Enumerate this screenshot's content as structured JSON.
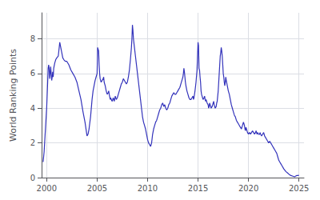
{
  "chart_data": {
    "type": "line",
    "ylabel": "World Ranking Points",
    "color": "#3333bb",
    "grid": true,
    "xlim": [
      1999.5,
      2025.5
    ],
    "xticks": [
      2000,
      2005,
      2010,
      2015,
      2020,
      2025
    ],
    "ylim": [
      0,
      9.5
    ],
    "yticks": [
      0,
      2,
      4,
      6,
      8
    ],
    "x": [
      1999.65,
      1999.75,
      1999.85,
      2000.0,
      2000.1,
      2000.15,
      2000.2,
      2000.25,
      2000.3,
      2000.35,
      2000.4,
      2000.45,
      2000.5,
      2000.55,
      2000.6,
      2000.65,
      2000.7,
      2000.8,
      2000.9,
      2001.0,
      2001.15,
      2001.3,
      2001.4,
      2001.5,
      2001.6,
      2001.7,
      2001.85,
      2002.0,
      2002.2,
      2002.4,
      2002.6,
      2002.8,
      2003.0,
      2003.2,
      2003.4,
      2003.6,
      2003.8,
      2004.0,
      2004.1,
      2004.2,
      2004.35,
      2004.5,
      2004.6,
      2004.7,
      2004.8,
      2004.9,
      2005.0,
      2005.05,
      2005.1,
      2005.15,
      2005.2,
      2005.25,
      2005.3,
      2005.4,
      2005.5,
      2005.6,
      2005.65,
      2005.7,
      2005.8,
      2005.9,
      2006.0,
      2006.1,
      2006.15,
      2006.2,
      2006.3,
      2006.35,
      2006.4,
      2006.5,
      2006.6,
      2006.7,
      2006.8,
      2006.9,
      2007.0,
      2007.1,
      2007.2,
      2007.3,
      2007.4,
      2007.5,
      2007.6,
      2007.7,
      2007.8,
      2007.9,
      2008.0,
      2008.1,
      2008.2,
      2008.3,
      2008.4,
      2008.45,
      2008.5,
      2008.55,
      2008.6,
      2008.7,
      2008.8,
      2008.9,
      2009.0,
      2009.1,
      2009.2,
      2009.3,
      2009.4,
      2009.5,
      2009.6,
      2009.7,
      2009.8,
      2009.9,
      2010.0,
      2010.1,
      2010.2,
      2010.3,
      2010.4,
      2010.5,
      2010.6,
      2010.7,
      2010.8,
      2010.9,
      2011.0,
      2011.1,
      2011.2,
      2011.3,
      2011.35,
      2011.4,
      2011.5,
      2011.6,
      2011.7,
      2011.8,
      2011.9,
      2012.0,
      2012.1,
      2012.2,
      2012.3,
      2012.4,
      2012.5,
      2012.6,
      2012.7,
      2012.8,
      2012.9,
      2013.0,
      2013.1,
      2013.2,
      2013.3,
      2013.4,
      2013.5,
      2013.55,
      2013.6,
      2013.65,
      2013.7,
      2013.75,
      2013.8,
      2013.9,
      2014.0,
      2014.1,
      2014.2,
      2014.3,
      2014.4,
      2014.5,
      2014.55,
      2014.6,
      2014.7,
      2014.8,
      2014.9,
      2015.0,
      2015.05,
      2015.1,
      2015.15,
      2015.2,
      2015.25,
      2015.3,
      2015.35,
      2015.4,
      2015.45,
      2015.5,
      2015.6,
      2015.65,
      2015.7,
      2015.75,
      2015.8,
      2015.85,
      2015.9,
      2016.0,
      2016.05,
      2016.1,
      2016.15,
      2016.2,
      2016.3,
      2016.4,
      2016.5,
      2016.55,
      2016.6,
      2016.7,
      2016.8,
      2016.85,
      2016.9,
      2017.0,
      2017.05,
      2017.1,
      2017.15,
      2017.2,
      2017.25,
      2017.3,
      2017.35,
      2017.4,
      2017.45,
      2017.5,
      2017.55,
      2017.6,
      2017.65,
      2017.7,
      2017.75,
      2017.8,
      2017.9,
      2018.0,
      2018.1,
      2018.2,
      2018.3,
      2018.4,
      2018.5,
      2018.6,
      2018.7,
      2018.8,
      2018.9,
      2019.0,
      2019.1,
      2019.2,
      2019.3,
      2019.4,
      2019.5,
      2019.55,
      2019.6,
      2019.65,
      2019.7,
      2019.75,
      2019.8,
      2019.85,
      2019.9,
      2020.0,
      2020.1,
      2020.2,
      2020.3,
      2020.4,
      2020.5,
      2020.6,
      2020.7,
      2020.75,
      2020.8,
      2020.85,
      2020.9,
      2021.0,
      2021.1,
      2021.15,
      2021.2,
      2021.3,
      2021.4,
      2021.5,
      2021.55,
      2021.6,
      2021.7,
      2021.8,
      2021.9,
      2022.0,
      2022.1,
      2022.2,
      2022.3,
      2022.4,
      2022.5,
      2022.6,
      2022.7,
      2022.8,
      2022.85,
      2022.9,
      2023.0,
      2023.1,
      2023.2,
      2023.3,
      2023.5,
      2023.7,
      2023.9,
      2024.0,
      2024.2,
      2024.4,
      2024.5,
      2024.6,
      2024.7,
      2024.8,
      2024.85,
      2024.9,
      2025.0
    ],
    "values": [
      0.9,
      1.5,
      2.5,
      4.0,
      5.5,
      6.3,
      6.5,
      6.3,
      5.7,
      6.0,
      6.4,
      6.0,
      5.6,
      5.8,
      6.1,
      5.8,
      6.3,
      6.6,
      6.8,
      6.9,
      7.0,
      7.8,
      7.5,
      7.2,
      6.9,
      6.8,
      6.7,
      6.7,
      6.5,
      6.2,
      6.0,
      5.8,
      5.5,
      5.0,
      4.5,
      3.8,
      3.2,
      2.4,
      2.5,
      2.8,
      3.5,
      4.5,
      5.0,
      5.3,
      5.6,
      5.8,
      6.0,
      7.5,
      7.5,
      7.3,
      6.5,
      6.0,
      5.7,
      5.5,
      5.6,
      5.7,
      5.8,
      5.5,
      5.3,
      5.0,
      4.8,
      4.9,
      5.0,
      4.8,
      4.5,
      4.6,
      4.5,
      4.4,
      4.6,
      4.4,
      4.7,
      4.5,
      4.6,
      4.8,
      5.0,
      5.2,
      5.4,
      5.5,
      5.7,
      5.6,
      5.5,
      5.4,
      5.5,
      5.8,
      6.2,
      6.8,
      7.5,
      8.0,
      8.8,
      8.5,
      8.0,
      7.5,
      7.0,
      6.5,
      6.0,
      5.5,
      5.0,
      4.5,
      4.0,
      3.5,
      3.2,
      3.0,
      2.8,
      2.5,
      2.2,
      2.0,
      1.9,
      1.8,
      2.0,
      2.5,
      2.8,
      3.0,
      3.2,
      3.3,
      3.5,
      3.7,
      3.9,
      4.0,
      4.1,
      4.2,
      4.3,
      4.1,
      4.2,
      4.0,
      3.9,
      4.0,
      4.2,
      4.3,
      4.5,
      4.7,
      4.8,
      4.9,
      4.8,
      4.8,
      4.9,
      5.0,
      5.1,
      5.2,
      5.4,
      5.6,
      5.8,
      6.0,
      6.3,
      6.1,
      5.8,
      5.5,
      5.3,
      5.0,
      4.8,
      4.6,
      4.5,
      4.5,
      4.6,
      4.7,
      4.5,
      4.6,
      5.0,
      5.5,
      6.2,
      7.8,
      7.6,
      6.3,
      6.2,
      5.8,
      5.5,
      5.0,
      4.8,
      4.7,
      4.6,
      4.5,
      4.6,
      4.7,
      4.5,
      4.4,
      4.5,
      4.4,
      4.3,
      4.2,
      4.0,
      4.1,
      4.3,
      4.2,
      4.0,
      4.1,
      4.3,
      4.4,
      4.2,
      4.0,
      4.1,
      4.3,
      4.4,
      5.0,
      5.5,
      6.0,
      6.5,
      7.0,
      7.2,
      7.5,
      7.3,
      7.0,
      6.5,
      6.0,
      5.8,
      5.5,
      5.3,
      5.5,
      5.8,
      5.6,
      5.3,
      5.0,
      4.8,
      4.5,
      4.2,
      4.0,
      3.8,
      3.6,
      3.5,
      3.3,
      3.2,
      3.1,
      3.0,
      2.9,
      2.8,
      3.0,
      3.2,
      3.1,
      3.0,
      2.8,
      2.7,
      2.9,
      2.8,
      2.7,
      2.6,
      2.5,
      2.6,
      2.5,
      2.6,
      2.7,
      2.6,
      2.5,
      2.6,
      2.7,
      2.6,
      2.5,
      2.6,
      2.5,
      2.5,
      2.6,
      2.5,
      2.4,
      2.5,
      2.6,
      2.5,
      2.4,
      2.3,
      2.2,
      2.1,
      2.0,
      2.1,
      2.0,
      1.9,
      1.8,
      1.7,
      1.6,
      1.5,
      1.4,
      1.3,
      1.2,
      1.0,
      0.9,
      0.8,
      0.7,
      0.5,
      0.35,
      0.25,
      0.2,
      0.12,
      0.08,
      0.06,
      0.05,
      0.1,
      0.12,
      0.13,
      0.12,
      0.13
    ]
  }
}
